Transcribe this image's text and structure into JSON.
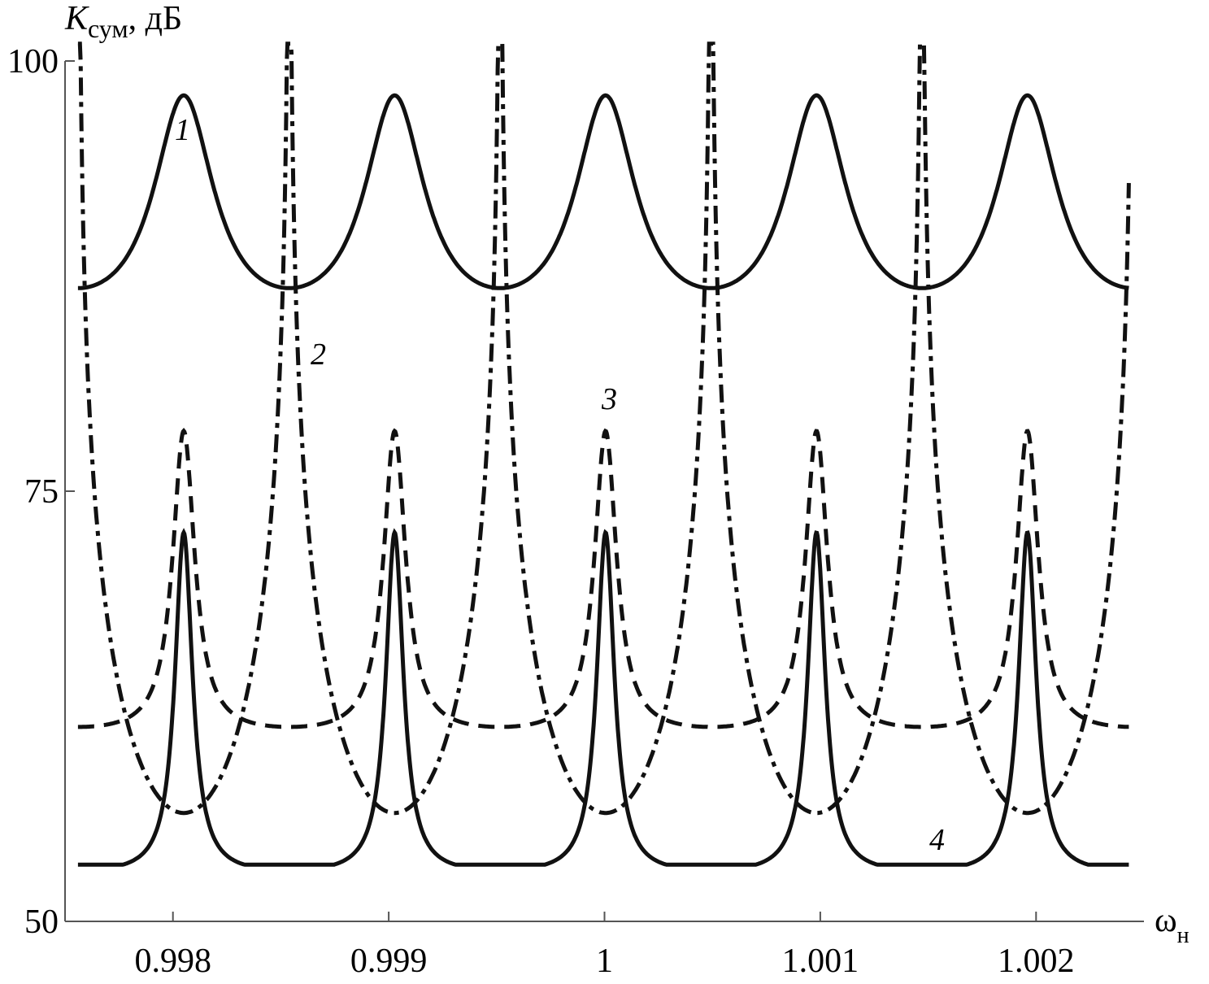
{
  "chart_data": {
    "type": "line",
    "ylabel_main": "K",
    "ylabel_sub": "сум",
    "ylabel_unit": ", дБ",
    "xlabel_main": "ω",
    "xlabel_sub": "н",
    "xlim": [
      0.9975,
      1.0025
    ],
    "ylim": [
      50,
      100
    ],
    "grid": false,
    "x_ticks": [
      0.998,
      0.999,
      1,
      1.001,
      1.002
    ],
    "x_tick_labels": [
      "0.998",
      "0.999",
      "1",
      "1.001",
      "1.002"
    ],
    "y_ticks": [
      50,
      75,
      100
    ],
    "y_tick_labels": [
      "50",
      "75",
      "100"
    ],
    "x_range_of_curves": [
      0.99756,
      1.00243
    ],
    "resonance_x": [
      0.99805,
      0.99903,
      1.0,
      1.00098,
      1.00196
    ],
    "antiresonance_x": [
      0.99756,
      0.99854,
      0.99951,
      1.00049,
      1.00147,
      1.00243
    ],
    "series": [
      {
        "name": "1",
        "style": "solid",
        "shape": "peak",
        "peak_value": 98.0,
        "trough_value": 86.8
      },
      {
        "name": "2",
        "style": "dash-dot",
        "shape": "inverse",
        "trough_value": 56.3,
        "peak_value": "unbounded (>100)"
      },
      {
        "name": "3",
        "style": "dashed",
        "shape": "peak",
        "peak_value": 78.5,
        "trough_value": 61.3
      },
      {
        "name": "4",
        "style": "solid",
        "shape": "peak",
        "peak_value": 72.6,
        "trough_value": 53.3
      }
    ],
    "curve_labels": [
      "1",
      "2",
      "3",
      "4"
    ]
  }
}
